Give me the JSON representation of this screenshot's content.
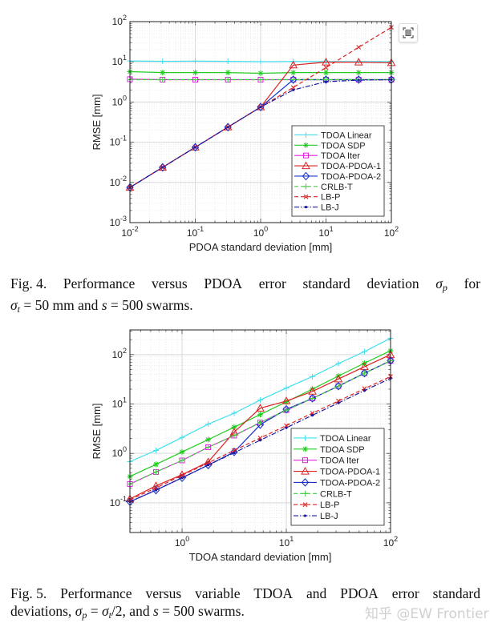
{
  "chart_data": [
    {
      "type": "line",
      "title": "",
      "xlabel": "PDOA standard deviation [mm]",
      "ylabel": "RMSE [mm]",
      "xscale": "log",
      "yscale": "log",
      "xlim": [
        0.01,
        100
      ],
      "ylim": [
        0.001,
        100
      ],
      "xticks": [
        0.01,
        0.1,
        1,
        10,
        100
      ],
      "xtick_labels": [
        "10^-2",
        "10^-1",
        "10^0",
        "10^1",
        "10^2"
      ],
      "yticks": [
        0.001,
        0.01,
        0.1,
        1,
        10,
        100
      ],
      "ytick_labels": [
        "10^-3",
        "10^-2",
        "10^-1",
        "10^0",
        "10^1",
        "10^2"
      ],
      "grid": true,
      "legend_position": "lower-right",
      "x": [
        0.01,
        0.0316,
        0.1,
        0.316,
        1,
        3.16,
        10,
        31.6,
        100
      ],
      "series": [
        {
          "name": "TDOA Linear",
          "color": "#40e0f0",
          "marker": "plus",
          "line": "solid",
          "values": [
            10.5,
            10.3,
            10.4,
            10.3,
            10.1,
            10.2,
            10.2,
            10.2,
            10.2
          ]
        },
        {
          "name": "TDOA SDP",
          "color": "#22cc22",
          "marker": "asterisk",
          "line": "solid",
          "values": [
            5.7,
            5.4,
            5.4,
            5.4,
            5.2,
            5.4,
            5.4,
            5.4,
            5.4
          ]
        },
        {
          "name": "TDOA Iter",
          "color": "#e020e0",
          "marker": "square",
          "line": "solid",
          "values": [
            3.7,
            3.6,
            3.6,
            3.6,
            3.6,
            3.6,
            3.6,
            3.6,
            3.6
          ]
        },
        {
          "name": "TDOA-PDOA-1",
          "color": "#dd2222",
          "marker": "triangle",
          "line": "solid",
          "values": [
            0.0075,
            0.0237,
            0.075,
            0.237,
            0.75,
            8.3,
            9.8,
            9.8,
            9.5
          ]
        },
        {
          "name": "TDOA-PDOA-2",
          "color": "#1a33cc",
          "marker": "diamond",
          "line": "solid",
          "values": [
            0.0075,
            0.0237,
            0.075,
            0.237,
            0.75,
            3.6,
            3.6,
            3.6,
            3.6
          ]
        },
        {
          "name": "CRLB-T",
          "color": "#44cc44",
          "marker": "plus",
          "line": "dashed",
          "values": [
            3.6,
            3.6,
            3.6,
            3.6,
            3.6,
            3.6,
            3.6,
            3.6,
            3.6
          ]
        },
        {
          "name": "LB-P",
          "color": "#dd2222",
          "marker": "x",
          "line": "dashed",
          "values": [
            0.0075,
            0.0237,
            0.075,
            0.237,
            0.75,
            2.3,
            7.2,
            23,
            72
          ]
        },
        {
          "name": "LB-J",
          "color": "#1a1aa0",
          "marker": "dot",
          "line": "dashdot",
          "values": [
            0.0075,
            0.0237,
            0.075,
            0.237,
            0.75,
            2.0,
            3.2,
            3.5,
            3.6
          ]
        }
      ]
    },
    {
      "type": "line",
      "title": "",
      "xlabel": "TDOA standard deviation [mm]",
      "ylabel": "RMSE [mm]",
      "xscale": "log",
      "yscale": "log",
      "xlim": [
        0.316,
        100
      ],
      "ylim": [
        0.025,
        316
      ],
      "xticks": [
        1,
        10,
        100
      ],
      "xtick_labels": [
        "10^0",
        "10^1",
        "10^2"
      ],
      "yticks": [
        0.1,
        1,
        10,
        100
      ],
      "ytick_labels": [
        "10^-1",
        "10^0",
        "10^1",
        "10^2"
      ],
      "grid": true,
      "legend_position": "lower-right",
      "x": [
        0.316,
        0.562,
        1,
        1.78,
        3.16,
        5.62,
        10,
        17.8,
        31.6,
        56.2,
        100
      ],
      "series": [
        {
          "name": "TDOA Linear",
          "color": "#40e0f0",
          "marker": "plus",
          "line": "solid",
          "values": [
            0.68,
            1.15,
            2.1,
            3.9,
            6.5,
            12,
            21,
            36,
            66,
            115,
            215
          ]
        },
        {
          "name": "TDOA SDP",
          "color": "#22cc22",
          "marker": "asterisk",
          "line": "solid",
          "values": [
            0.34,
            0.6,
            1.07,
            1.9,
            3.4,
            6.1,
            11,
            20,
            37,
            67,
            120
          ]
        },
        {
          "name": "TDOA Iter",
          "color": "#e020e0",
          "marker": "square",
          "line": "solid",
          "values": [
            0.24,
            0.42,
            0.72,
            1.33,
            2.3,
            4.2,
            7.5,
            13,
            23,
            42,
            75
          ]
        },
        {
          "name": "TDOA-PDOA-1",
          "color": "#dd2222",
          "marker": "triangle",
          "line": "solid",
          "values": [
            0.12,
            0.22,
            0.37,
            0.67,
            2.7,
            8.2,
            11.5,
            18,
            32,
            57,
            100
          ]
        },
        {
          "name": "TDOA-PDOA-2",
          "color": "#1a33cc",
          "marker": "diamond",
          "line": "solid",
          "values": [
            0.105,
            0.18,
            0.32,
            0.58,
            1.07,
            3.8,
            7.8,
            13,
            23,
            42,
            75
          ]
        },
        {
          "name": "CRLB-T",
          "color": "#44cc44",
          "marker": "plus",
          "line": "dashed",
          "values": [
            0.24,
            0.42,
            0.72,
            1.33,
            2.3,
            4.2,
            7.5,
            13,
            23,
            42,
            75
          ]
        },
        {
          "name": "LB-P",
          "color": "#dd2222",
          "marker": "x",
          "line": "dashed",
          "values": [
            0.115,
            0.2,
            0.36,
            0.64,
            1.15,
            2.05,
            3.65,
            6.5,
            11.5,
            20.5,
            36
          ]
        },
        {
          "name": "LB-J",
          "color": "#1a1aa0",
          "marker": "dot",
          "line": "dashdot",
          "values": [
            0.105,
            0.18,
            0.32,
            0.58,
            1.03,
            1.85,
            3.3,
            5.9,
            10.5,
            18.7,
            33
          ]
        }
      ]
    }
  ],
  "captions": [
    {
      "line1": [
        {
          "t": "Fig. 4."
        },
        {
          "t": "Performance"
        },
        {
          "t": "versus"
        },
        {
          "t": "PDOA"
        },
        {
          "t": "error"
        },
        {
          "t": "standard"
        },
        {
          "t": "deviation"
        },
        {
          "t": "σ",
          "i": true,
          "sub": "p"
        },
        {
          "t": "for"
        }
      ],
      "line2": [
        {
          "t": "σ",
          "i": true,
          "sub": "t"
        },
        {
          "t": " = 50 mm and "
        },
        {
          "t": "s",
          "i": true
        },
        {
          "t": " = 500 swarms."
        }
      ]
    },
    {
      "line1": [
        {
          "t": "Fig. 5."
        },
        {
          "t": "Performance"
        },
        {
          "t": "versus"
        },
        {
          "t": "variable"
        },
        {
          "t": "TDOA"
        },
        {
          "t": "and"
        },
        {
          "t": "PDOA"
        },
        {
          "t": "error"
        },
        {
          "t": "standard"
        }
      ],
      "line2": [
        {
          "t": "deviations, "
        },
        {
          "t": "σ",
          "i": true,
          "sub": "p"
        },
        {
          "t": " = "
        },
        {
          "t": "σ",
          "i": true,
          "sub": "t"
        },
        {
          "t": "/2, and "
        },
        {
          "t": "s",
          "i": true
        },
        {
          "t": " = 500 swarms."
        }
      ]
    }
  ],
  "watermark": "知乎 @EW Frontier",
  "icons": {
    "expand": "expand-grid-icon"
  }
}
